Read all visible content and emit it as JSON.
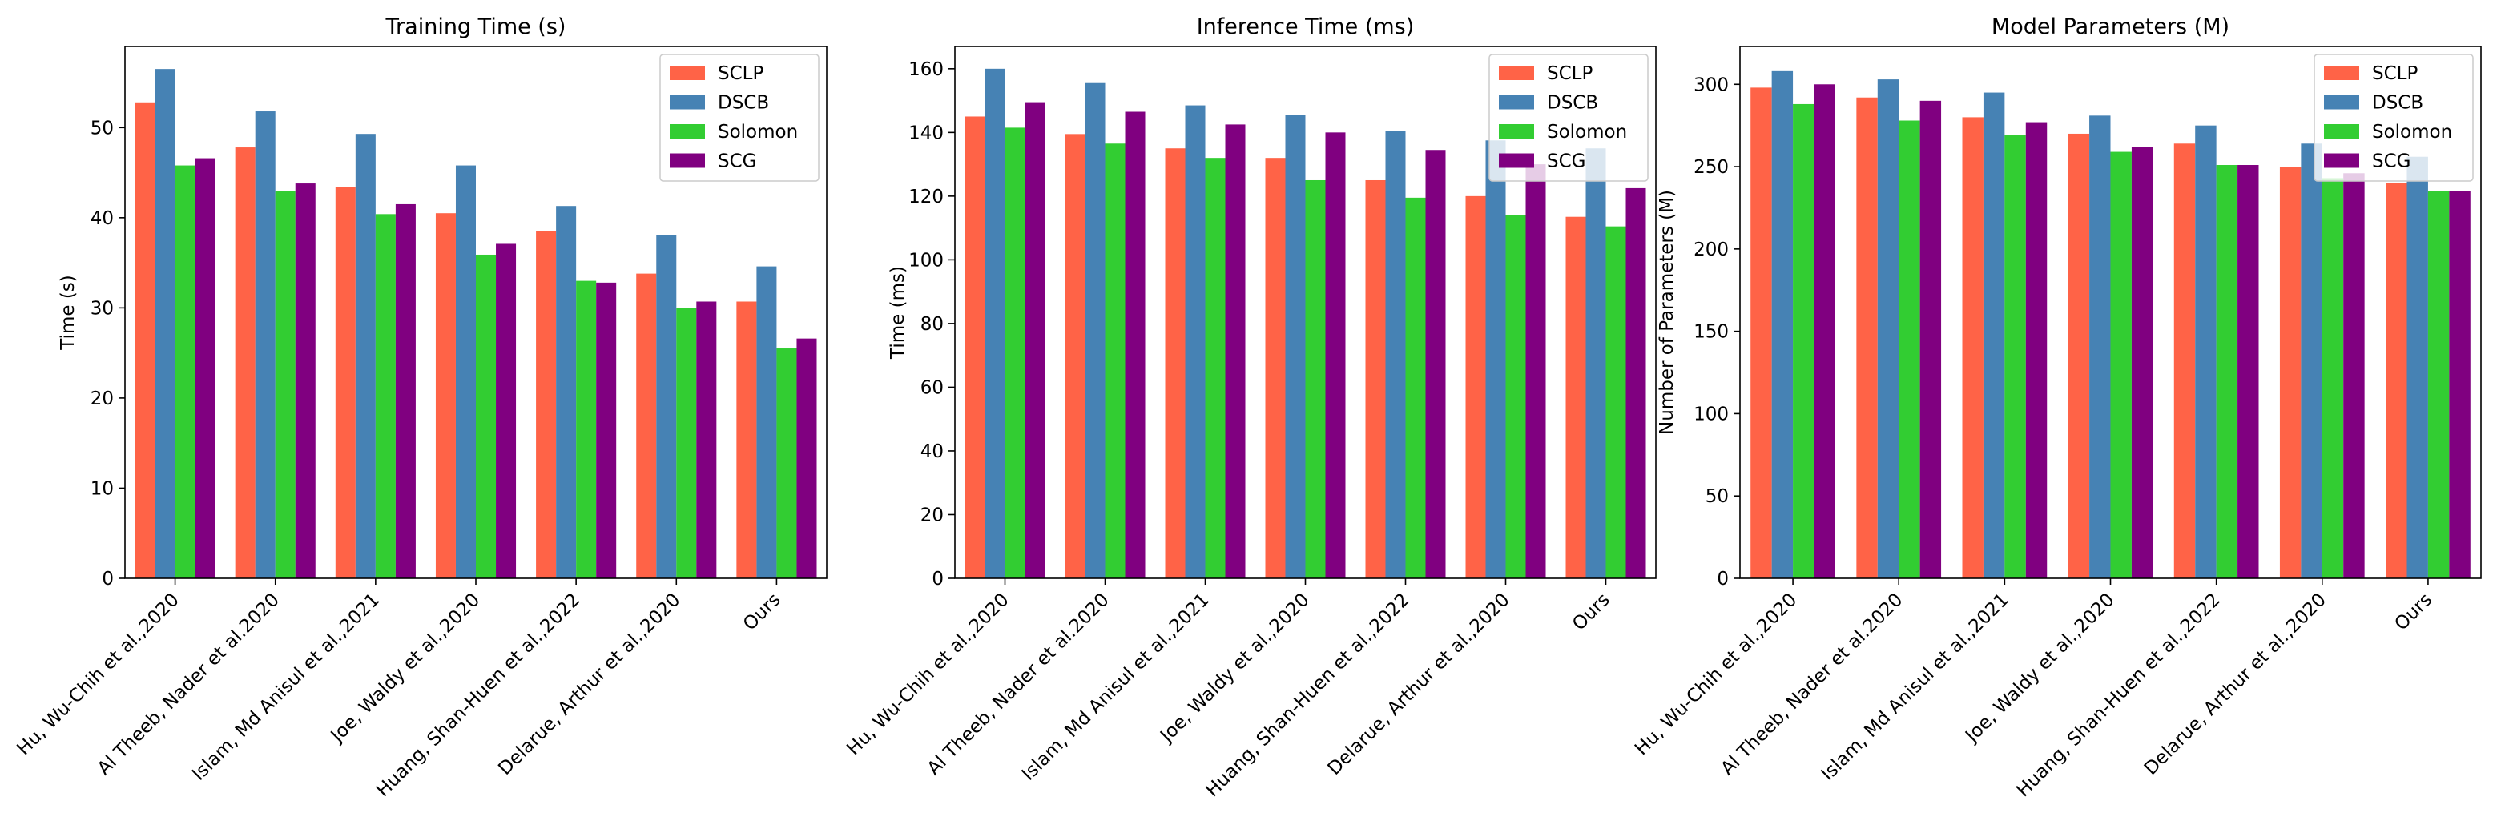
{
  "colors": {
    "SCLP": "#FF6347",
    "DSCB": "#4682B4",
    "Solomon": "#32CD32",
    "SCG": "#800080"
  },
  "chart_data": [
    {
      "type": "bar",
      "title": "Training Time (s)",
      "xlabel": "",
      "ylabel": "Time (s)",
      "ylim": [
        0,
        59
      ],
      "yticks": [
        0,
        10,
        20,
        30,
        40,
        50
      ],
      "legend_position": "top-right",
      "categories": [
        "Hu, Wu-Chih et al.,2020",
        "Al Theeb, Nader et al.2020",
        "Islam, Md Anisul et al.,2021",
        "Joe, Waldy et al.,2020",
        "Huang, Shan-Huen et al.,2022",
        "Delarue, Arthur et al.,2020",
        "Ours"
      ],
      "series": [
        {
          "name": "SCLP",
          "values": [
            52.8,
            47.8,
            43.4,
            40.5,
            38.5,
            33.8,
            30.7
          ]
        },
        {
          "name": "DSCB",
          "values": [
            56.5,
            51.8,
            49.3,
            45.8,
            41.3,
            38.1,
            34.6
          ]
        },
        {
          "name": "Solomon",
          "values": [
            45.8,
            43.0,
            40.4,
            35.9,
            33.0,
            30.0,
            25.5
          ]
        },
        {
          "name": "SCG",
          "values": [
            46.6,
            43.8,
            41.5,
            37.1,
            32.8,
            30.7,
            26.6
          ]
        }
      ]
    },
    {
      "type": "bar",
      "title": "Inference Time (ms)",
      "xlabel": "",
      "ylabel": "Time (ms)",
      "ylim": [
        0,
        167
      ],
      "yticks": [
        0,
        20,
        40,
        60,
        80,
        100,
        120,
        140,
        160
      ],
      "legend_position": "top-right",
      "categories": [
        "Hu, Wu-Chih et al.,2020",
        "Al Theeb, Nader et al.2020",
        "Islam, Md Anisul et al.,2021",
        "Joe, Waldy et al.,2020",
        "Huang, Shan-Huen et al.,2022",
        "Delarue, Arthur et al.,2020",
        "Ours"
      ],
      "series": [
        {
          "name": "SCLP",
          "values": [
            145,
            139.5,
            135,
            132,
            125,
            120,
            113.5
          ]
        },
        {
          "name": "DSCB",
          "values": [
            160,
            155.5,
            148.5,
            145.5,
            140.5,
            137.5,
            135
          ]
        },
        {
          "name": "Solomon",
          "values": [
            141.5,
            136.5,
            132,
            125,
            119.5,
            114,
            110.5
          ]
        },
        {
          "name": "SCG",
          "values": [
            149.5,
            146.5,
            142.5,
            140,
            134.5,
            130,
            122.5
          ]
        }
      ]
    },
    {
      "type": "bar",
      "title": "Model Parameters (M)",
      "xlabel": "",
      "ylabel": "Number of Parameters (M)",
      "ylim": [
        0,
        323
      ],
      "yticks": [
        0,
        50,
        100,
        150,
        200,
        250,
        300
      ],
      "legend_position": "top-right",
      "categories": [
        "Hu, Wu-Chih et al.,2020",
        "Al Theeb, Nader et al.2020",
        "Islam, Md Anisul et al.,2021",
        "Joe, Waldy et al.,2020",
        "Huang, Shan-Huen et al.,2022",
        "Delarue, Arthur et al.,2020",
        "Ours"
      ],
      "series": [
        {
          "name": "SCLP",
          "values": [
            298,
            292,
            280,
            270,
            264,
            250,
            240
          ]
        },
        {
          "name": "DSCB",
          "values": [
            308,
            303,
            295,
            281,
            275,
            264,
            256
          ]
        },
        {
          "name": "Solomon",
          "values": [
            288,
            278,
            269,
            259,
            251,
            243,
            235
          ]
        },
        {
          "name": "SCG",
          "values": [
            300,
            290,
            277,
            262,
            251,
            246,
            235
          ]
        }
      ]
    }
  ]
}
